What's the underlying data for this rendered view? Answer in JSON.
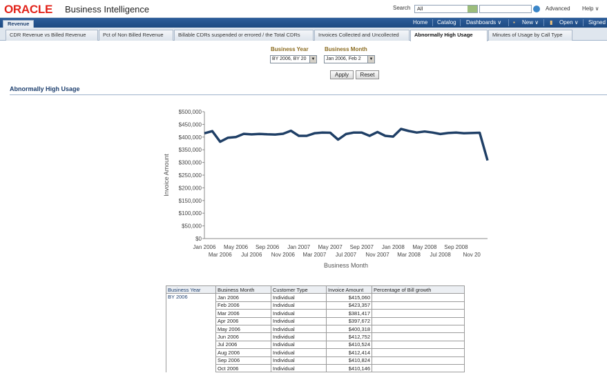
{
  "header": {
    "logo": "ORACLE",
    "product": "Business Intelligence",
    "search_label": "Search",
    "search_scope": "All",
    "advanced": "Advanced",
    "help": "Help ∨"
  },
  "nav": {
    "home": "Home",
    "catalog": "Catalog",
    "dashboards": "Dashboards ∨",
    "new": "New ∨",
    "open": "Open ∨",
    "signed": "Signed"
  },
  "dashboard_tab": "Revenue",
  "tabs": [
    "CDR Revenue vs Billed Revenue",
    "Pct of Non Billed Revenue",
    "Billable CDRs suspended or errored / the Total CDRs",
    "Invoices Collected and Uncollected",
    "Abnormally High Usage",
    "Minutes of Usage by Call Type"
  ],
  "active_tab_index": 4,
  "prompts": {
    "year_label": "Business Year",
    "year_value": "BY 2006, BY 20",
    "month_label": "Business Month",
    "month_value": "Jan 2006, Feb 2",
    "apply": "Apply",
    "reset": "Reset"
  },
  "section_title": "Abnormally High Usage",
  "chart_data": {
    "type": "line",
    "ylabel": "Invoice Amount",
    "xlabel": "Business Month",
    "ylim": [
      0,
      500000
    ],
    "y_ticks": [
      "$0",
      "$50,000",
      "$100,000",
      "$150,000",
      "$200,000",
      "$250,000",
      "$300,000",
      "$350,000",
      "$400,000",
      "$450,000",
      "$500,000"
    ],
    "x_ticks_top": [
      "Jan 2006",
      "May 2006",
      "Sep 2006",
      "Jan 2007",
      "May 2007",
      "Sep 2007",
      "Jan 2008",
      "May 2008",
      "Sep 2008"
    ],
    "x_ticks_bottom": [
      "Mar 2006",
      "Jul 2006",
      "Nov 2006",
      "Mar 2007",
      "Jul 2007",
      "Nov 2007",
      "Mar 2008",
      "Jul 2008",
      "Nov 20"
    ],
    "color": "#1f3f66",
    "grid": false,
    "values": [
      415060,
      423357,
      381417,
      397672,
      400318,
      412752,
      410524,
      412414,
      410824,
      410146,
      413000,
      425000,
      405000,
      405000,
      415000,
      418000,
      417000,
      390000,
      412000,
      418000,
      418000,
      405000,
      420000,
      405000,
      402000,
      432000,
      424000,
      418000,
      422000,
      418000,
      412000,
      416000,
      418000,
      415000,
      416000,
      417000,
      308000
    ]
  },
  "table": {
    "headers": [
      "Business Year",
      "Business Month",
      "Customer Type",
      "Invoice Amount",
      "Percentage of Bill growth"
    ],
    "year": "BY 2006",
    "rows": [
      [
        "Jan 2006",
        "Individual",
        "$415,060"
      ],
      [
        "Feb 2006",
        "Individual",
        "$423,357"
      ],
      [
        "Mar 2006",
        "Individual",
        "$381,417"
      ],
      [
        "Apr 2006",
        "Individual",
        "$397,672"
      ],
      [
        "May 2006",
        "Individual",
        "$400,318"
      ],
      [
        "Jun 2006",
        "Individual",
        "$412,752"
      ],
      [
        "Jul 2006",
        "Individual",
        "$410,524"
      ],
      [
        "Aug 2006",
        "Individual",
        "$412,414"
      ],
      [
        "Sep 2006",
        "Individual",
        "$410,824"
      ],
      [
        "Oct 2006",
        "Individual",
        "$410,146"
      ]
    ]
  }
}
